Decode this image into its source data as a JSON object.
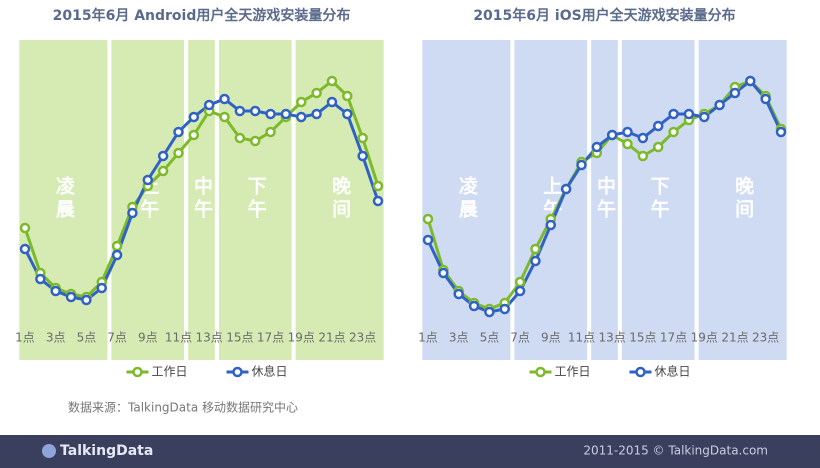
{
  "chart_data": [
    {
      "type": "line",
      "title": "2015年6月 Android用户全天游戏安装量分布",
      "background": "#d6ebb3",
      "categories": [
        "1点",
        null,
        "3点",
        null,
        "5点",
        null,
        "7点",
        null,
        "9点",
        null,
        "11点",
        null,
        "13点",
        null,
        "15点",
        null,
        "17点",
        null,
        "19点",
        null,
        "21点",
        null,
        "23点",
        null
      ],
      "periods": [
        {
          "label": "凌晨",
          "from": 0,
          "to": 5
        },
        {
          "label": "上午",
          "from": 6,
          "to": 10
        },
        {
          "label": "中午",
          "from": 11,
          "to": 12
        },
        {
          "label": "下午",
          "from": 13,
          "to": 17
        },
        {
          "label": "晚间",
          "from": 18,
          "to": 23
        }
      ],
      "ylim": [
        0,
        110
      ],
      "series": [
        {
          "name": "工作日",
          "color": "#7dba2b",
          "values": [
            44,
            29,
            24,
            22,
            21,
            26,
            38,
            51,
            58,
            63,
            69,
            75,
            83,
            81,
            74,
            73,
            76,
            81,
            86,
            89,
            93,
            88,
            74,
            58
          ]
        },
        {
          "name": "休息日",
          "color": "#2f62c4",
          "values": [
            37,
            27,
            23,
            21,
            20,
            24,
            35,
            49,
            60,
            68,
            76,
            81,
            85,
            87,
            83,
            83,
            82,
            82,
            81,
            82,
            86,
            82,
            68,
            53
          ]
        }
      ]
    },
    {
      "type": "line",
      "title": "2015年6月 iOS用户全天游戏安装量分布",
      "background": "#cfdaf3",
      "categories": [
        "1点",
        null,
        "3点",
        null,
        "5点",
        null,
        "7点",
        null,
        "9点",
        null,
        "11点",
        null,
        "13点",
        null,
        "15点",
        null,
        "17点",
        null,
        "19点",
        null,
        "21点",
        null,
        "23点",
        null
      ],
      "periods": [
        {
          "label": "凌晨",
          "from": 0,
          "to": 5
        },
        {
          "label": "上午",
          "from": 6,
          "to": 10
        },
        {
          "label": "中午",
          "from": 11,
          "to": 12
        },
        {
          "label": "下午",
          "from": 13,
          "to": 17
        },
        {
          "label": "晚间",
          "from": 18,
          "to": 23
        }
      ],
      "ylim": [
        0,
        110
      ],
      "series": [
        {
          "name": "工作日",
          "color": "#7dba2b",
          "values": [
            47,
            30,
            23,
            19,
            17,
            19,
            26,
            37,
            47,
            57,
            66,
            69,
            75,
            72,
            68,
            71,
            76,
            80,
            82,
            85,
            91,
            93,
            88,
            77
          ]
        },
        {
          "name": "休息日",
          "color": "#2f62c4",
          "values": [
            40,
            29,
            22,
            18,
            16,
            17,
            23,
            33,
            45,
            57,
            65,
            71,
            75,
            76,
            74,
            78,
            82,
            82,
            81,
            85,
            89,
            93,
            87,
            76
          ]
        }
      ]
    }
  ],
  "source": "数据来源：TalkingData 移动数据研究中心",
  "footer": {
    "brand": "TalkingData",
    "copyright": "2011-2015 © TalkingData.com"
  }
}
